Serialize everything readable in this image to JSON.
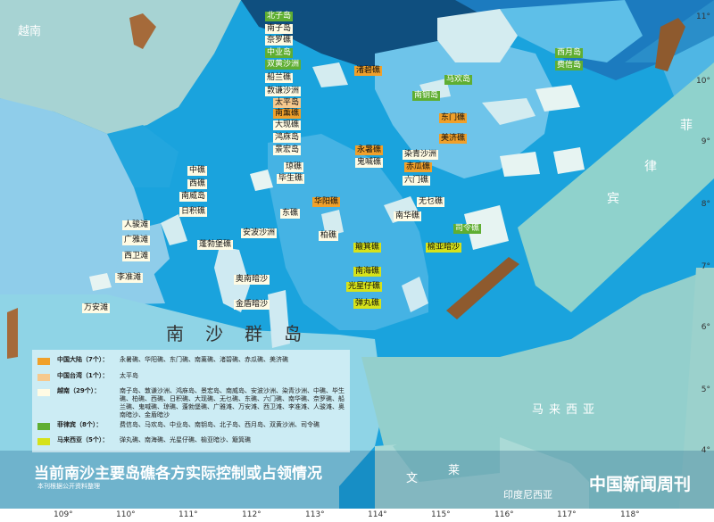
{
  "map": {
    "title": "当前南沙主要岛礁各方实际控制或占领情况",
    "subtitle": "本刊根据公开资料整理",
    "brand": "中国新闻周刊",
    "sea_name": "南沙群岛",
    "geo_labels": {
      "vietnam": "越南",
      "phil_1": "菲",
      "phil_2": "律",
      "phil_3": "宾",
      "malaysia": "马来西亚",
      "brunei_1": "文",
      "brunei_2": "莱",
      "indonesia": "印度尼西亚"
    },
    "longitudes": [
      "109°",
      "110°",
      "111°",
      "112°",
      "113°",
      "114°",
      "115°",
      "116°",
      "117°",
      "118°"
    ],
    "latitudes": [
      "11°",
      "10°",
      "9°",
      "8°",
      "7°",
      "6°",
      "5°",
      "4°"
    ]
  },
  "legend": [
    {
      "key": "mainland",
      "color": "#f0a02a",
      "head": "中国大陆（7个）：",
      "list": "永暑礁、华阳礁、东门礁、南薰礁、渚碧礁、赤瓜礁、美济礁"
    },
    {
      "key": "taiwan",
      "color": "#f6c98e",
      "head": "中国台湾（1个）：",
      "list": "太平岛"
    },
    {
      "key": "vietnam",
      "color": "#fffbe4",
      "head": "越南（29个）：",
      "list": "南子岛、敦谦沙洲、鸿庥岛、景宏岛、南威岛、安波沙洲、染青沙洲、中礁、毕生礁、柏礁、西礁、日积礁、大现礁、无乜礁、东礁、六门礁、南华礁、奈罗礁、船兰礁、鬼喊礁、琼礁、蓬勃堡礁、广雅滩、万安滩、西卫滩、李准滩、人骏滩、奥南暗沙、金盾暗沙"
    },
    {
      "key": "philippines",
      "color": "#5fae32",
      "head": "菲律宾（8个）：",
      "list": "费信岛、马欢岛、中业岛、南钥岛、北子岛、西月岛、双黄沙洲、司令礁"
    },
    {
      "key": "malaysia",
      "color": "#d6e21a",
      "head": "马来西亚（5个）：",
      "list": "弹丸礁、南海礁、光星仔礁、榆亚暗沙、簸箕礁"
    }
  ],
  "features": {
    "beizi": "北子岛",
    "nanzi": "南子岛",
    "nailuo": "奈罗礁",
    "zhongye": "中业岛",
    "shuanghuang": "双黄沙洲",
    "chuanlan": "船兰礁",
    "zhubi": "渚碧礁",
    "dunqian": "敦谦沙洲",
    "taiping": "太平岛",
    "nanxun": "南薰礁",
    "daxian": "大现礁",
    "hongxiu": "鸿庥岛",
    "jinghong": "景宏岛",
    "qiong": "琼礁",
    "bisheng": "毕生礁",
    "nanyue": "南钥岛",
    "xiyue": "西月岛",
    "feixin": "费信岛",
    "mahuan": "马欢岛",
    "dongmen": "东门礁",
    "meiji": "美济礁",
    "yongshu": "永暑礁",
    "guihan": "鬼喊礁",
    "ranqing": "染青沙洲",
    "chigua": "赤瓜礁",
    "liumen": "六门礁",
    "wumie": "无乜礁",
    "huayang": "华阳礁",
    "dongjiao": "东礁",
    "nanhua": "南华礁",
    "siling": "司令礁",
    "zhongjiao": "中礁",
    "xijiao": "西礁",
    "nanwei": "南威岛",
    "riji": "日积礁",
    "renjun": "人骏滩",
    "guangya": "广雅滩",
    "xiwei": "西卫滩",
    "lizhun": "李准滩",
    "wanan": "万安滩",
    "anbo": "安波沙洲",
    "pengbo": "蓬勃堡礁",
    "bojiao": "柏礁",
    "boji": "簸箕礁",
    "yuya": "榆亚暗沙",
    "nanhai": "南海礁",
    "guangxingzai": "光星仔礁",
    "danwan": "弹丸礁",
    "aonan": "奥南暗沙",
    "jindun": "金盾暗沙"
  },
  "colors": {
    "deep": "#104e7e",
    "mid": "#1fa0dc",
    "light": "#7fcbea",
    "pale": "#bfe4f2",
    "land": "#9fd3d3",
    "reef": "#e7f4f2"
  }
}
